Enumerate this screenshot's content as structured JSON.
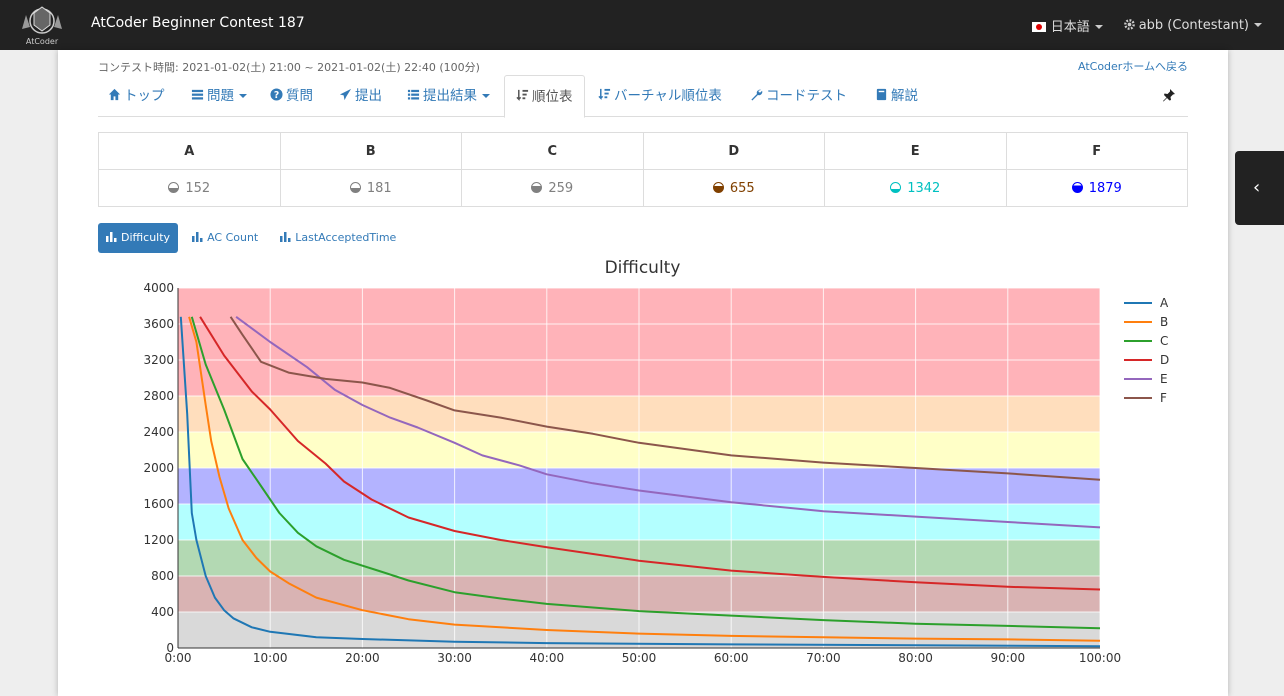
{
  "navbar": {
    "contest_title": "AtCoder Beginner Contest 187",
    "logo_text": "AtCoder",
    "language": "日本語",
    "user": "abb (Contestant)"
  },
  "header": {
    "contest_time": "コンテスト時間: 2021-01-02(土) 21:00 ~ 2021-01-02(土) 22:40 (100分)",
    "home_link": "AtCoderホームへ戻る"
  },
  "tabs": [
    {
      "label": "トップ",
      "icon": "home-icon"
    },
    {
      "label": "問題",
      "icon": "list-icon"
    },
    {
      "label": "質問",
      "icon": "question-icon"
    },
    {
      "label": "提出",
      "icon": "send-icon"
    },
    {
      "label": "提出結果",
      "icon": "list-icon"
    },
    {
      "label": "順位表",
      "icon": "sort-icon"
    },
    {
      "label": "バーチャル順位表",
      "icon": "sort-icon"
    },
    {
      "label": "コードテスト",
      "icon": "wrench-icon"
    },
    {
      "label": "解説",
      "icon": "book-icon"
    }
  ],
  "problems": [
    {
      "letter": "A",
      "difficulty": "152",
      "color": "#808080"
    },
    {
      "letter": "B",
      "difficulty": "181",
      "color": "#808080"
    },
    {
      "letter": "C",
      "difficulty": "259",
      "color": "#808080"
    },
    {
      "letter": "D",
      "difficulty": "655",
      "color": "#804000"
    },
    {
      "letter": "E",
      "difficulty": "1342",
      "color": "#00C0C0"
    },
    {
      "letter": "F",
      "difficulty": "1879",
      "color": "#0000FF"
    }
  ],
  "chart_buttons": [
    "Difficulty",
    "AC Count",
    "LastAcceptedTime"
  ],
  "chart_data": {
    "type": "line",
    "title": "Difficulty",
    "xlabel": "",
    "ylabel": "",
    "ylim": [
      0,
      4000
    ],
    "xlim": [
      0,
      100
    ],
    "yticks": [
      "0",
      "400",
      "800",
      "1200",
      "1600",
      "2000",
      "2400",
      "2800",
      "3200",
      "3600",
      "4000"
    ],
    "xticks": [
      "0:00",
      "10:00",
      "20:00",
      "30:00",
      "40:00",
      "50:00",
      "60:00",
      "70:00",
      "80:00",
      "90:00",
      "100:00"
    ],
    "bands": [
      {
        "from": 0,
        "to": 400,
        "color": "#d9d9d9"
      },
      {
        "from": 400,
        "to": 800,
        "color": "#d9b3b3"
      },
      {
        "from": 800,
        "to": 1200,
        "color": "#b3d9b3"
      },
      {
        "from": 1200,
        "to": 1600,
        "color": "#b3ffff"
      },
      {
        "from": 1600,
        "to": 2000,
        "color": "#b3b3ff"
      },
      {
        "from": 2000,
        "to": 2400,
        "color": "#ffffc7"
      },
      {
        "from": 2400,
        "to": 2800,
        "color": "#ffdebd"
      },
      {
        "from": 2800,
        "to": 4000,
        "color": "#ffb3b9"
      }
    ],
    "legend_position": "right",
    "series": [
      {
        "name": "A",
        "color": "#1f77b4",
        "x": [
          0.3,
          1,
          1.5,
          2,
          3,
          4,
          5,
          6,
          8,
          10,
          15,
          20,
          30,
          40,
          60,
          80,
          100
        ],
        "y": [
          3680,
          2600,
          1500,
          1200,
          800,
          560,
          420,
          330,
          230,
          180,
          120,
          100,
          70,
          55,
          40,
          30,
          20
        ]
      },
      {
        "name": "B",
        "color": "#ff7f0e",
        "x": [
          1.2,
          2,
          3,
          3.6,
          4.5,
          5.5,
          7,
          8.5,
          10,
          12,
          15,
          20,
          25,
          30,
          40,
          50,
          60,
          70,
          80,
          90,
          100
        ],
        "y": [
          3680,
          3400,
          2700,
          2300,
          1900,
          1550,
          1200,
          1000,
          850,
          720,
          560,
          420,
          320,
          260,
          200,
          160,
          135,
          120,
          105,
          95,
          80
        ]
      },
      {
        "name": "C",
        "color": "#2ca02c",
        "x": [
          1.5,
          3,
          5,
          7,
          9,
          11,
          13,
          15,
          18,
          22,
          25,
          30,
          35,
          40,
          50,
          60,
          70,
          80,
          90,
          100
        ],
        "y": [
          3680,
          3150,
          2650,
          2100,
          1800,
          1500,
          1280,
          1130,
          980,
          850,
          750,
          620,
          550,
          490,
          410,
          360,
          310,
          270,
          245,
          220
        ]
      },
      {
        "name": "D",
        "color": "#d62728",
        "x": [
          2.4,
          5,
          8,
          10,
          13,
          16,
          18,
          21,
          25,
          30,
          35,
          40,
          50,
          60,
          70,
          80,
          90,
          100
        ],
        "y": [
          3680,
          3250,
          2850,
          2650,
          2300,
          2050,
          1850,
          1650,
          1450,
          1300,
          1200,
          1120,
          970,
          860,
          790,
          730,
          680,
          650
        ]
      },
      {
        "name": "E",
        "color": "#9467bd",
        "x": [
          6.3,
          10,
          14,
          17,
          20,
          23,
          26,
          30,
          33,
          37,
          40,
          45,
          50,
          60,
          70,
          80,
          90,
          100
        ],
        "y": [
          3680,
          3400,
          3120,
          2870,
          2700,
          2560,
          2450,
          2280,
          2140,
          2030,
          1930,
          1830,
          1750,
          1620,
          1520,
          1460,
          1400,
          1340
        ]
      },
      {
        "name": "F",
        "color": "#8c564b",
        "x": [
          5.7,
          7,
          9,
          12,
          16,
          20,
          23,
          27,
          30,
          35,
          40,
          45,
          50,
          60,
          70,
          80,
          90,
          100
        ],
        "y": [
          3680,
          3480,
          3180,
          3060,
          2990,
          2950,
          2890,
          2750,
          2640,
          2560,
          2460,
          2380,
          2280,
          2140,
          2060,
          2000,
          1940,
          1870
        ]
      }
    ]
  }
}
